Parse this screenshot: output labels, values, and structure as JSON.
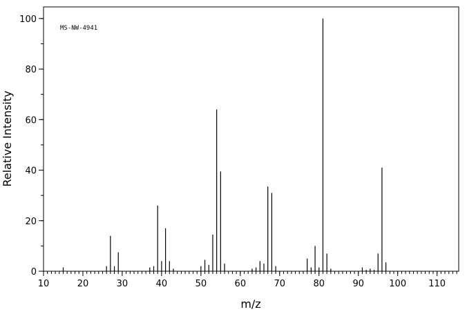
{
  "chart_data": {
    "type": "stem",
    "annotation": "MS-NW-4941",
    "x_label": "m/z",
    "y_label": "Relative Intensity",
    "color": "#000000",
    "x": [
      15,
      26,
      27,
      28,
      29,
      37,
      38,
      39,
      40,
      41,
      42,
      43,
      50,
      51,
      52,
      53,
      54,
      55,
      56,
      63,
      64,
      65,
      66,
      67,
      68,
      69,
      77,
      78,
      79,
      80,
      81,
      82,
      83,
      91,
      92,
      93,
      94,
      95,
      96,
      97
    ],
    "values": [
      1.5,
      2,
      14,
      2,
      7.5,
      1.5,
      2,
      26,
      4,
      17,
      4,
      1,
      2,
      4.5,
      2.5,
      14.5,
      64,
      39.5,
      3,
      1,
      1.5,
      4,
      3,
      33.5,
      31,
      2,
      5,
      1.5,
      10,
      1.5,
      100,
      7,
      1,
      1.5,
      0.5,
      1,
      0.5,
      7,
      41,
      3.5
    ],
    "xlim": [
      10,
      115.5
    ],
    "ylim": [
      0,
      104.6
    ],
    "xticks": [
      10,
      20,
      30,
      40,
      50,
      60,
      70,
      80,
      90,
      100,
      110
    ],
    "yticks": [
      0,
      20,
      40,
      60,
      80,
      100
    ],
    "minor_ticks": true,
    "grid": false
  }
}
